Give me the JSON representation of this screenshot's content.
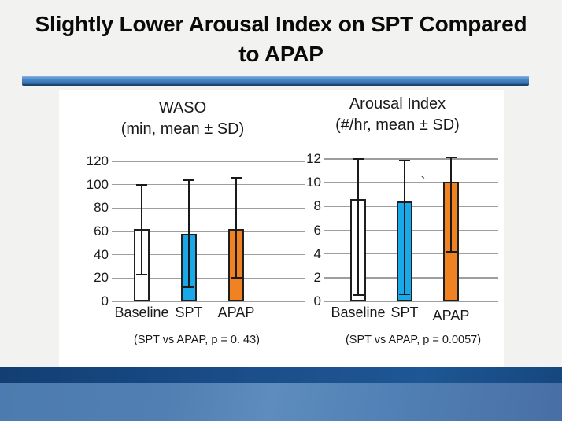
{
  "slide": {
    "title_lines": [
      "Slightly Lower Arousal Index on SPT Compared",
      "to APAP"
    ]
  },
  "colors": {
    "baseline_bar": "#FFFFFF",
    "spt_bar": "#19A9E8",
    "apap_bar": "#F08222",
    "bar_border": "#1F1F1F",
    "gridline": "#9E9E9E",
    "divider_blue": "#4A86C6",
    "footer_dark_blue": "#1B4E8A",
    "footer_light_blue": "#527FB3"
  },
  "chart_data": [
    {
      "type": "bar",
      "title": "WASO",
      "subtitle": "(min, mean ± SD)",
      "categories": [
        "Baseline",
        "SPT",
        "APAP"
      ],
      "values": [
        62,
        58,
        62
      ],
      "error_low": [
        23,
        12,
        20
      ],
      "error_high": [
        100,
        104,
        106
      ],
      "bar_colors": [
        "#FFFFFF",
        "#19A9E8",
        "#F08222"
      ],
      "ylim": [
        0,
        120
      ],
      "ytick_step": 20,
      "ytick_labels": [
        "0",
        "20",
        "40",
        "60",
        "80",
        "100",
        "120"
      ],
      "grid": true,
      "legend": "none",
      "caption": "(SPT vs APAP, p = 0. 43)"
    },
    {
      "type": "bar",
      "title": "Arousal Index",
      "subtitle": "(#/hr, mean ± SD)",
      "categories": [
        "Baseline",
        "SPT",
        "APAP"
      ],
      "values": [
        8.6,
        8.4,
        10.1
      ],
      "error_low": [
        0.5,
        0.6,
        4.2
      ],
      "error_high": [
        12,
        11.9,
        12.1
      ],
      "bar_colors": [
        "#FFFFFF",
        "#19A9E8",
        "#F08222"
      ],
      "ylim": [
        0,
        12
      ],
      "ytick_step": 2,
      "ytick_labels": [
        "0",
        "2",
        "4",
        "6",
        "8",
        "10",
        "12"
      ],
      "grid": true,
      "legend": "none",
      "caption": "(SPT vs APAP, p = 0.0057)",
      "annotation": "`"
    }
  ]
}
